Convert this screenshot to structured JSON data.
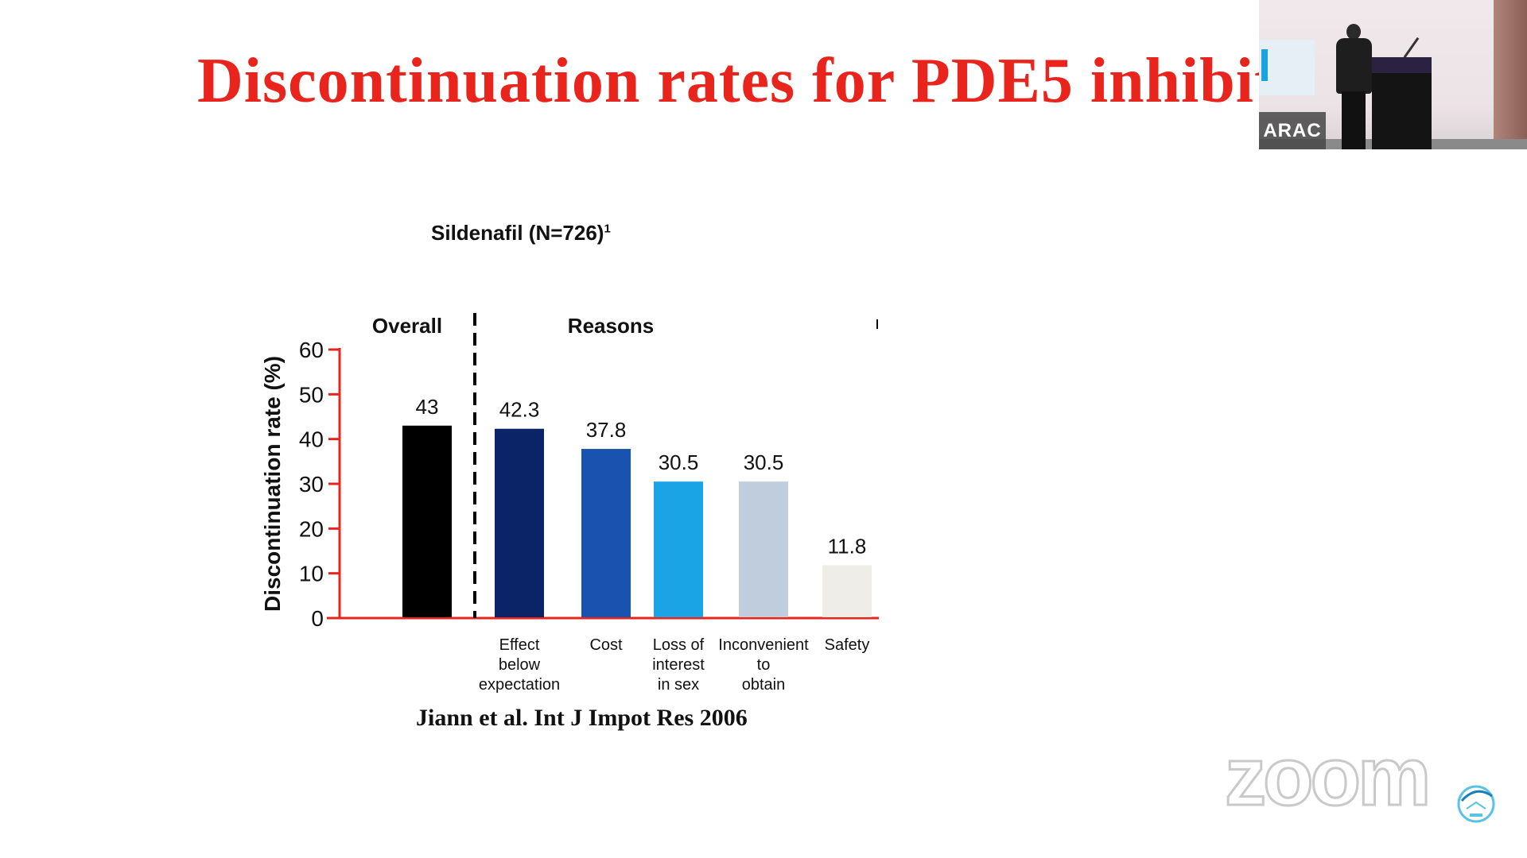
{
  "slide": {
    "title": "Discontinuation rates for PDE5 inhibito",
    "subtitle": "Sildenafil (N=726)",
    "subtitle_sup": "1",
    "citation": "Jiann et al. Int J Impot Res 2006"
  },
  "video": {
    "label": "ARAC"
  },
  "watermark": {
    "text": "zoom",
    "icon": "zoom-logo-icon"
  },
  "chart_data": {
    "type": "bar",
    "title": "",
    "ylabel": "Discontinuation rate (%)",
    "xlabel": "",
    "ylim": [
      0,
      60
    ],
    "yticks": [
      0,
      10,
      20,
      30,
      40,
      50,
      60
    ],
    "grid": false,
    "group_labels": [
      "Overall",
      "Reasons"
    ],
    "categories": [
      [
        ""
      ],
      [
        "Effect",
        "below",
        "expectation"
      ],
      [
        "Cost"
      ],
      [
        "Loss of",
        "interest",
        "in sex"
      ],
      [
        "Inconvenient",
        "to",
        "obtain"
      ],
      [
        "Safety"
      ]
    ],
    "values": [
      43,
      42.3,
      37.8,
      30.5,
      30.5,
      11.8
    ],
    "value_labels": [
      "43",
      "42.3",
      "37.8",
      "30.5",
      "30.5",
      "11.8"
    ],
    "colors": [
      "#000000",
      "#0b2468",
      "#1a52b0",
      "#1aa3e5",
      "#bfcddc",
      "#eeede8"
    ],
    "axis_color": "#e8241c"
  }
}
